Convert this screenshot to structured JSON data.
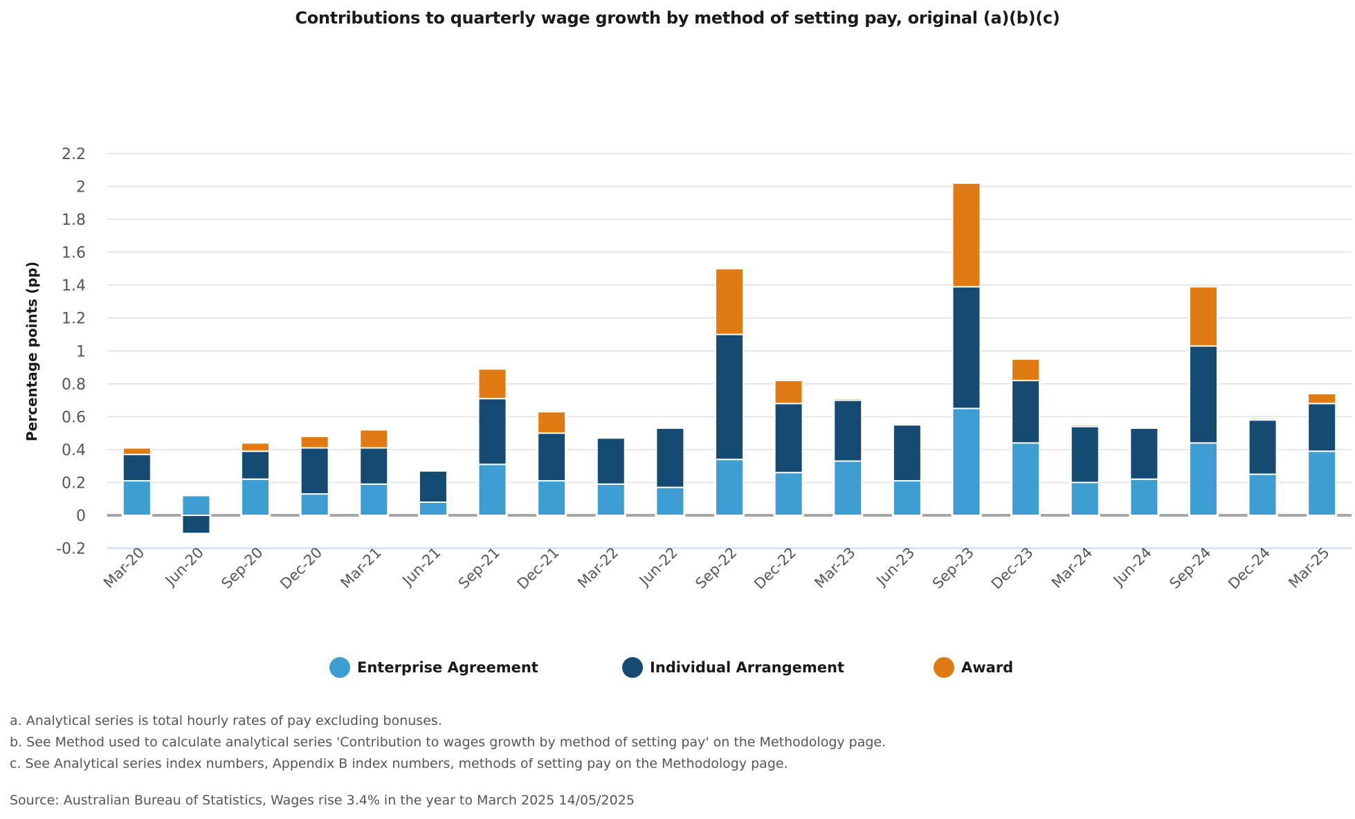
{
  "chart_data": {
    "type": "bar",
    "stacked": true,
    "title": "Contributions to quarterly wage growth by method of setting pay, original (a)(b)(c)",
    "xlabel": "",
    "ylabel": "Percentage points (pp)",
    "ylim": [
      -0.2,
      2.2
    ],
    "yticks": [
      2.2,
      2,
      1.8,
      1.6,
      1.4,
      1.2,
      1,
      0.8,
      0.6,
      0.4,
      0.2,
      0,
      -0.2
    ],
    "ytick_labels": [
      "2.2",
      "2",
      "1.8",
      "1.6",
      "1.4",
      "1.2",
      "1",
      "0.8",
      "0.6",
      "0.4",
      "0.2",
      "0",
      "-0.2"
    ],
    "grid": true,
    "legend_position": "bottom",
    "categories": [
      "Mar-20",
      "Jun-20",
      "Sep-20",
      "Dec-20",
      "Mar-21",
      "Jun-21",
      "Sep-21",
      "Dec-21",
      "Mar-22",
      "Jun-22",
      "Sep-22",
      "Dec-22",
      "Mar-23",
      "Jun-23",
      "Sep-23",
      "Dec-23",
      "Mar-24",
      "Jun-24",
      "Sep-24",
      "Dec-24",
      "Mar-25"
    ],
    "series": [
      {
        "name": "Enterprise Agreement",
        "color": "#3e9dd1",
        "values": [
          0.21,
          0.12,
          0.22,
          0.13,
          0.19,
          0.08,
          0.31,
          0.21,
          0.19,
          0.17,
          0.34,
          0.26,
          0.33,
          0.21,
          0.65,
          0.44,
          0.2,
          0.22,
          0.44,
          0.25,
          0.39
        ]
      },
      {
        "name": "Individual Arrangement",
        "color": "#154b72",
        "values": [
          0.16,
          -0.11,
          0.17,
          0.28,
          0.22,
          0.19,
          0.4,
          0.29,
          0.28,
          0.36,
          0.76,
          0.42,
          0.37,
          0.34,
          0.74,
          0.38,
          0.34,
          0.31,
          0.59,
          0.33,
          0.29
        ]
      },
      {
        "name": "Award",
        "color": "#e07b13",
        "values": [
          0.04,
          0,
          0.05,
          0.07,
          0.11,
          0,
          0.18,
          0.13,
          0,
          0,
          0.4,
          0.14,
          0.01,
          0,
          0.63,
          0.13,
          0.01,
          0,
          0.36,
          0.01,
          0.06
        ]
      }
    ]
  },
  "legend": [
    {
      "label": "Enterprise Agreement",
      "color": "#3e9dd1"
    },
    {
      "label": "Individual Arrangement",
      "color": "#154b72"
    },
    {
      "label": "Award",
      "color": "#e07b13"
    }
  ],
  "footnotes": [
    "a. Analytical series is total hourly rates of pay excluding bonuses.",
    "b. See Method used to calculate analytical series 'Contribution to wages growth by method of setting pay' on the Methodology page.",
    "c. See Analytical series index numbers, Appendix B index numbers, methods of setting pay on the Methodology page."
  ],
  "source": "Source: Australian Bureau of Statistics, Wages rise 3.4% in the year to March 2025 14/05/2025"
}
